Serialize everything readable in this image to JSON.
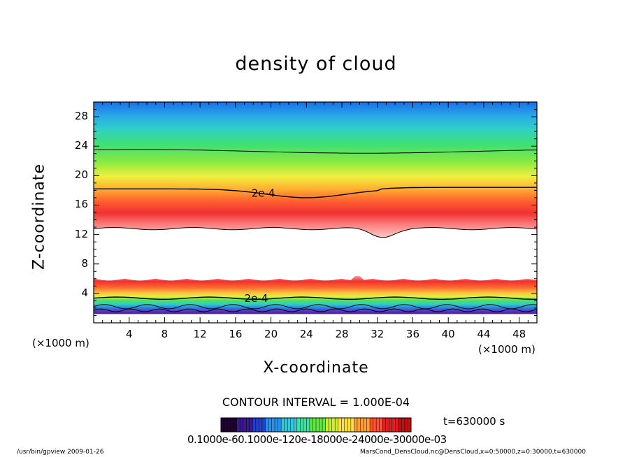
{
  "chart_data": {
    "type": "heatmap",
    "title": "density of cloud",
    "xlabel": "X-coordinate",
    "ylabel": "Z-coordinate",
    "x_unit_label": "(×1000 m)",
    "xlim": [
      0,
      50
    ],
    "ylim": [
      0,
      30
    ],
    "x_ticks": [
      4,
      8,
      12,
      16,
      20,
      24,
      28,
      32,
      36,
      40,
      44,
      48
    ],
    "y_ticks": [
      4,
      8,
      12,
      16,
      20,
      24,
      28
    ],
    "contour_labels": [
      {
        "text": "2e-4",
        "x": 17.8,
        "z": 17.6
      },
      {
        "text": "2e-4",
        "x": 17.0,
        "z": 3.3
      }
    ],
    "upper_layer": {
      "z_bottom": 12.8,
      "z_top": 30,
      "peak_z": 15.2
    },
    "lower_layer": {
      "z_bottom": 1.2,
      "z_top": 6.0,
      "peak_z": 4.8
    },
    "contour_interval_text": "CONTOUR INTERVAL = 1.000E-04",
    "colorbar_labels_text": "0.1000e-60.1000e-120e-18000e-24000e-30000e-03",
    "colorbar_colors": [
      "#200030",
      "#3a1a8a",
      "#2040d0",
      "#2a90e8",
      "#30c8e0",
      "#40e0a0",
      "#60e840",
      "#c8f030",
      "#ffe040",
      "#ffa030",
      "#ff5030",
      "#e02020",
      "#c01010"
    ]
  },
  "time_text": "t=630000 s",
  "footer": {
    "left": "/usr/bin/gpview  2009-01-26",
    "right": "MarsCond_DensCloud.nc@DensCloud,x=0:50000,z=0:30000,t=630000"
  }
}
